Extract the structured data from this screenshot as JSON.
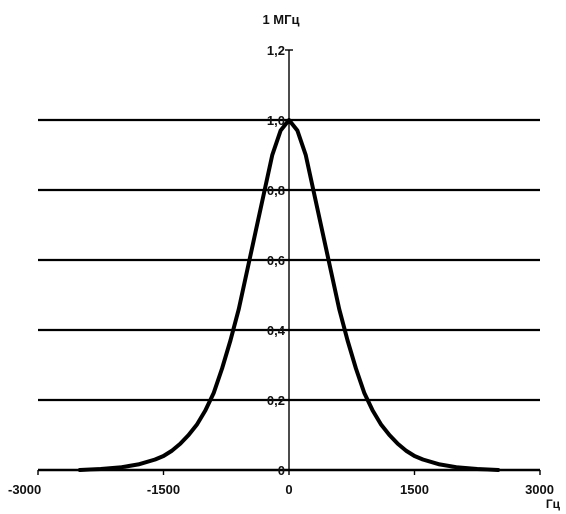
{
  "chart_data": {
    "type": "line",
    "title": "1 МГц",
    "xlabel": "Гц",
    "ylabel": "",
    "xlim": [
      -3000,
      3000
    ],
    "ylim": [
      0,
      1.2
    ],
    "x_ticks": [
      -3000,
      -1500,
      0,
      1500,
      3000
    ],
    "x_tick_labels": [
      "-3000",
      "-1500",
      "0",
      "1500",
      "3000"
    ],
    "y_ticks": [
      0,
      0.2,
      0.4,
      0.6,
      0.8,
      1.0,
      1.2
    ],
    "y_tick_labels": [
      "0",
      "0,2",
      "0,4",
      "0,6",
      "0,8",
      "1,0",
      "1,2"
    ],
    "grid": "horizontal",
    "legend": "none",
    "series": [
      {
        "x": [
          -2500,
          -2250,
          -2000,
          -1800,
          -1600,
          -1500,
          -1400,
          -1300,
          -1200,
          -1100,
          -1000,
          -900,
          -800,
          -700,
          -600,
          -500,
          -400,
          -300,
          -200,
          -100,
          0,
          100,
          200,
          300,
          400,
          500,
          600,
          700,
          800,
          900,
          1000,
          1100,
          1200,
          1300,
          1400,
          1500,
          1600,
          1800,
          2000,
          2250,
          2500
        ],
        "y": [
          0.0,
          0.003,
          0.008,
          0.016,
          0.03,
          0.04,
          0.055,
          0.075,
          0.1,
          0.13,
          0.17,
          0.22,
          0.29,
          0.37,
          0.46,
          0.57,
          0.68,
          0.79,
          0.9,
          0.97,
          1.0,
          0.97,
          0.9,
          0.79,
          0.68,
          0.57,
          0.46,
          0.37,
          0.29,
          0.22,
          0.17,
          0.13,
          0.1,
          0.075,
          0.055,
          0.04,
          0.03,
          0.016,
          0.008,
          0.003,
          0.0
        ]
      }
    ],
    "colors": {
      "line": "#000000",
      "grid": "#000000",
      "axis": "#000000"
    }
  }
}
